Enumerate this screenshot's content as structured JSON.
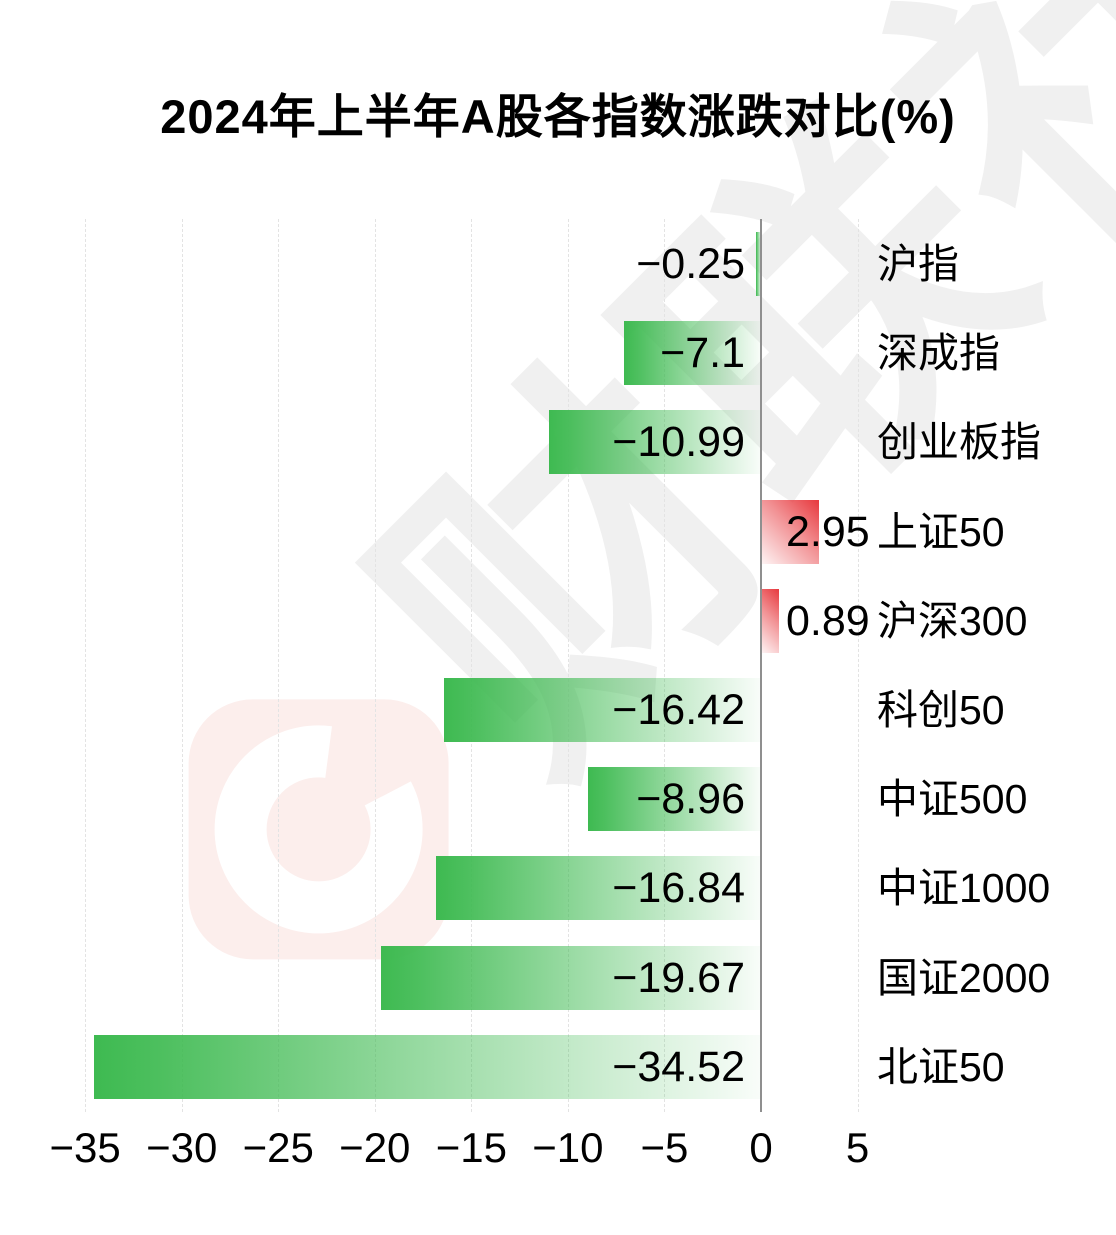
{
  "title": "2024年上半年A股各指数涨跌对比(%)",
  "chart_data": {
    "type": "bar",
    "orientation": "horizontal",
    "title": "2024年上半年A股各指数涨跌对比(%)",
    "categories": [
      "沪指",
      "深成指",
      "创业板指",
      "上证50",
      "沪深300",
      "科创50",
      "中证500",
      "中证1000",
      "国证2000",
      "北证50"
    ],
    "values": [
      -0.25,
      -7.1,
      -10.99,
      2.95,
      0.89,
      -16.42,
      -8.96,
      -16.84,
      -19.67,
      -34.52
    ],
    "value_labels": [
      "−0.25",
      "−7.1",
      "−10.99",
      "2.95",
      "0.89",
      "−16.42",
      "−8.96",
      "−16.84",
      "−19.67",
      "−34.52"
    ],
    "x_ticks": [
      -35,
      -30,
      -25,
      -20,
      -15,
      -10,
      -5,
      0,
      5
    ],
    "x_tick_labels": [
      "−35",
      "−30",
      "−25",
      "−20",
      "−15",
      "−10",
      "−5",
      "0",
      "5"
    ],
    "xlim": [
      -36.5,
      8.5
    ],
    "grid": "vertical-dashed",
    "legend": "none",
    "value_label_position": "inside-end",
    "category_label_position": "right-of-axis",
    "colors": {
      "negative_bar": "#3eba51",
      "positive_bar": "#e7393e",
      "axis_line": "#8f8f8f",
      "grid_line": "#e3e3e3",
      "label_text": "#000000"
    }
  },
  "watermark": {
    "text": "财联社",
    "logo_glyph": "C",
    "logo_color": "#fceeec",
    "logo_ring_color": "#ffffff",
    "text_color": "#f0f0f0"
  }
}
